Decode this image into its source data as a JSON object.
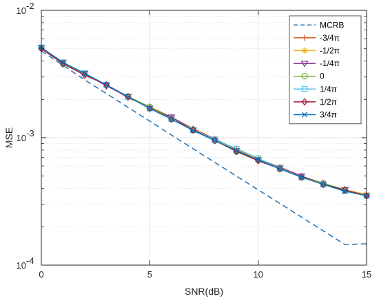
{
  "chart_data": {
    "type": "line",
    "xlabel": "SNR(dB)",
    "ylabel": "MSE",
    "xlim": [
      0,
      15
    ],
    "ylim": [
      0.0001,
      0.01
    ],
    "yscale": "log",
    "grid": true,
    "legend_position": "top-right",
    "x_ticks": [
      "0",
      "5",
      "10",
      "15"
    ],
    "y_ticks": [
      {
        "base": "10",
        "exp": "-4"
      },
      {
        "base": "10",
        "exp": "-3"
      },
      {
        "base": "10",
        "exp": "-2"
      }
    ],
    "x": [
      0,
      1,
      2,
      3,
      4,
      5,
      6,
      7,
      8,
      9,
      10,
      11,
      12,
      13,
      14,
      15
    ],
    "series": [
      {
        "name": "MCRB",
        "color": "#1f6fb4",
        "dash": "8,5",
        "marker": "none",
        "values": [
          0.0048,
          0.0037,
          0.00285,
          0.00222,
          0.00173,
          0.00135,
          0.00105,
          0.00082,
          0.00064,
          0.0005,
          0.00039,
          0.000305,
          0.000238,
          0.000186,
          0.000145,
          0.000147
        ]
      },
      {
        "name": "-3/4π",
        "color": "#d95319",
        "dash": "",
        "marker": "plus",
        "values": [
          0.0051,
          0.0039,
          0.00315,
          0.0026,
          0.00205,
          0.00175,
          0.00145,
          0.00118,
          0.00098,
          0.00081,
          0.00068,
          0.00059,
          0.0005,
          0.00044,
          0.00039,
          0.00035
        ]
      },
      {
        "name": "-1/2π",
        "color": "#edb120",
        "dash": "",
        "marker": "asterisk",
        "values": [
          0.0051,
          0.0039,
          0.0032,
          0.0026,
          0.0021,
          0.0017,
          0.0014,
          0.00115,
          0.00096,
          0.0008,
          0.00068,
          0.00058,
          0.00049,
          0.00043,
          0.00039,
          0.00036
        ]
      },
      {
        "name": "-1/4π",
        "color": "#7e2f8e",
        "dash": "",
        "marker": "triangle-down",
        "values": [
          0.0051,
          0.0039,
          0.0032,
          0.00255,
          0.0021,
          0.0017,
          0.00145,
          0.00115,
          0.00095,
          0.00079,
          0.00067,
          0.00058,
          0.0005,
          0.00043,
          0.00039,
          0.00035
        ]
      },
      {
        "name": "0",
        "color": "#77ac30",
        "dash": "",
        "marker": "circle",
        "values": [
          0.0051,
          0.0038,
          0.0032,
          0.0026,
          0.0021,
          0.00175,
          0.0014,
          0.00116,
          0.00096,
          0.00078,
          0.00067,
          0.00057,
          0.00049,
          0.00044,
          0.00039,
          0.00035
        ]
      },
      {
        "name": "1/4π",
        "color": "#4dbeee",
        "dash": "",
        "marker": "square",
        "values": [
          0.0051,
          0.0039,
          0.0032,
          0.0026,
          0.0021,
          0.0017,
          0.0014,
          0.00115,
          0.00097,
          0.00082,
          0.00069,
          0.00058,
          0.00049,
          0.00043,
          0.00038,
          0.00035
        ]
      },
      {
        "name": "1/2π",
        "color": "#a2142f",
        "dash": "",
        "marker": "diamond",
        "values": [
          0.005,
          0.0038,
          0.0031,
          0.0026,
          0.0021,
          0.0017,
          0.0014,
          0.00115,
          0.00095,
          0.00078,
          0.00066,
          0.00057,
          0.00049,
          0.00043,
          0.00039,
          0.00035
        ]
      },
      {
        "name": "3/4π",
        "color": "#0072bd",
        "dash": "",
        "marker": "x",
        "values": [
          0.0051,
          0.0039,
          0.0032,
          0.0026,
          0.0021,
          0.0017,
          0.0014,
          0.00114,
          0.00095,
          0.00079,
          0.00067,
          0.00057,
          0.00049,
          0.00043,
          0.00038,
          0.00035
        ]
      }
    ]
  }
}
